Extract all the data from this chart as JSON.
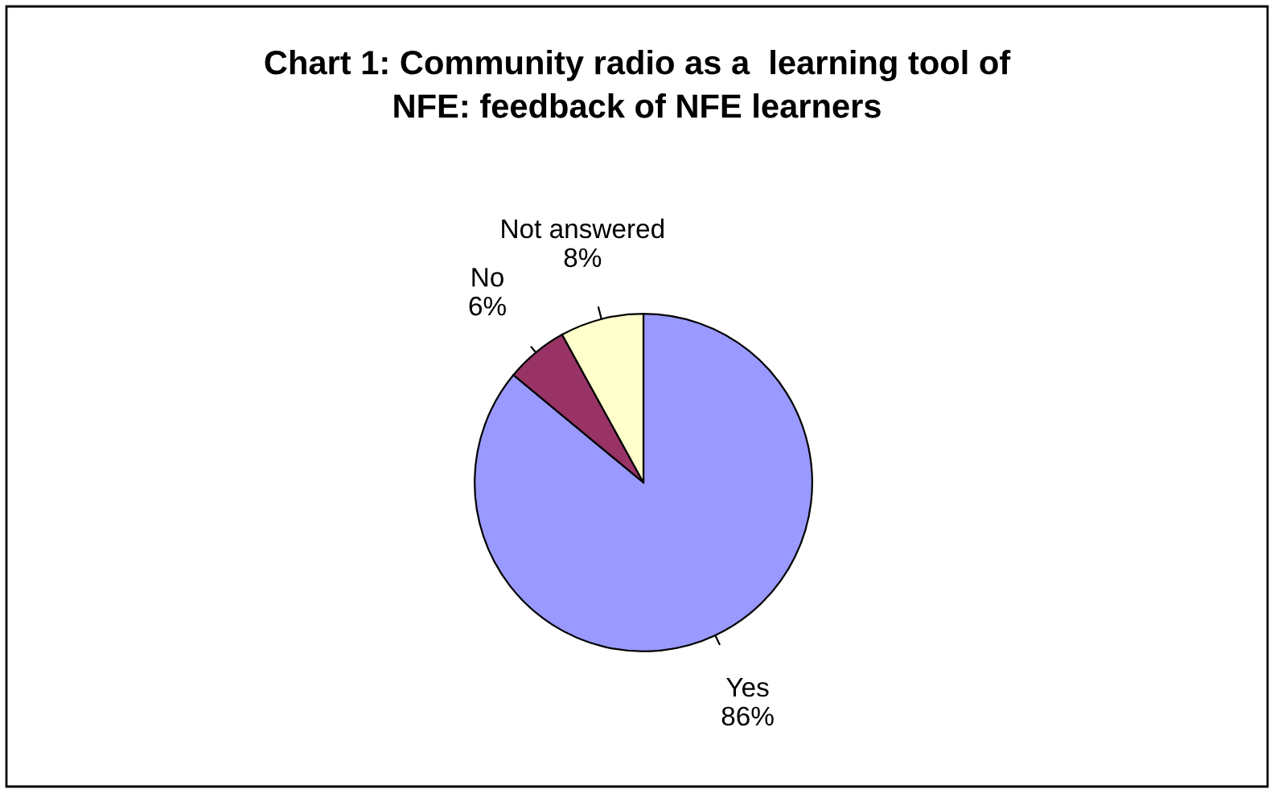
{
  "chart_data": {
    "type": "pie",
    "title": "Chart 1: Community radio as a  learning tool of\nNFE: feedback of NFE learners",
    "categories": [
      "Yes",
      "No",
      "Not answered"
    ],
    "values": [
      86,
      6,
      8
    ],
    "value_labels": [
      "86%",
      "6%",
      "8%"
    ],
    "colors": [
      "#9999ff",
      "#993366",
      "#ffffcc"
    ],
    "legend": false
  }
}
